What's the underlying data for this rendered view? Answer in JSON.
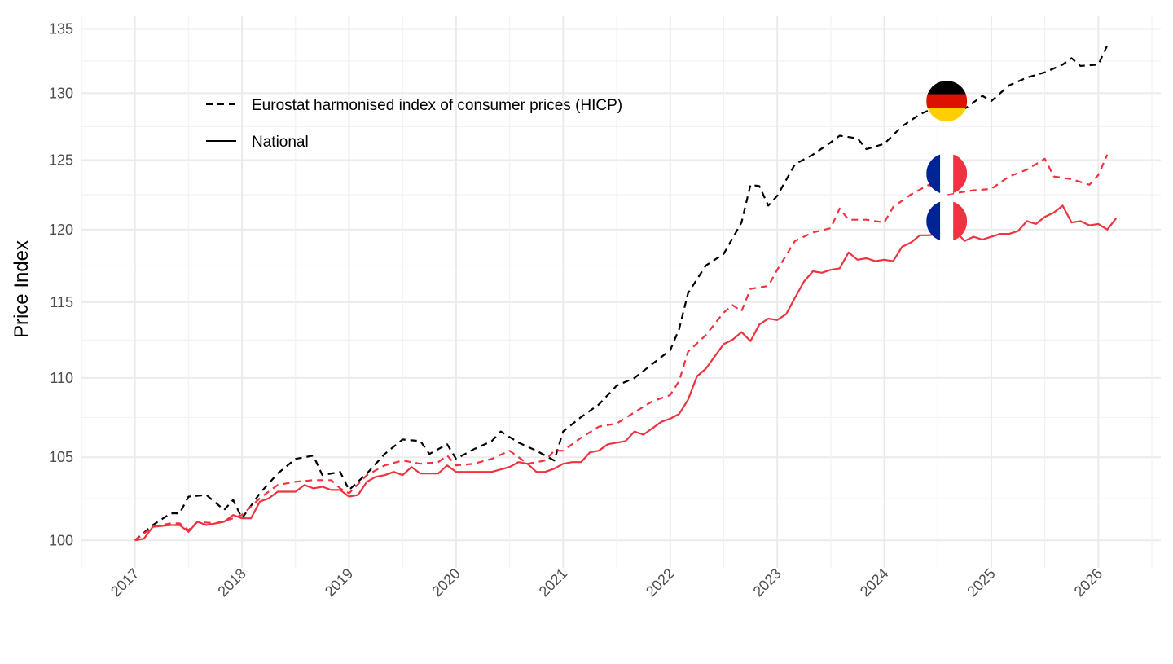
{
  "chart_data": {
    "type": "line",
    "title": "",
    "xlabel": "",
    "ylabel": "Price Index",
    "y_scale": "log",
    "ylim": [
      98.4,
      136
    ],
    "xlim": [
      "2016-07",
      "2026-08"
    ],
    "grid": true,
    "legend_placement": "top-left",
    "y_ticks": [
      100,
      105,
      110,
      115,
      120,
      125,
      130,
      135
    ],
    "x_ticks": [
      "2017",
      "2018",
      "2019",
      "2020",
      "2021",
      "2022",
      "2023",
      "2024",
      "2025",
      "2026"
    ],
    "legend": [
      {
        "label": "Eurostat harmonised index of consumer prices (HICP)",
        "linetype": "dashed"
      },
      {
        "label": "National",
        "linetype": "solid"
      }
    ],
    "colors": {
      "Germany": "#000000",
      "France": "#EF3340"
    },
    "series": [
      {
        "country": "Germany",
        "measure": "HICP",
        "linetype": "dashed",
        "points": [
          [
            "2017-01",
            100
          ],
          [
            "2017-03",
            100.9
          ],
          [
            "2017-05",
            101.6
          ],
          [
            "2017-06",
            101.6
          ],
          [
            "2017-07",
            102.6
          ],
          [
            "2017-09",
            102.7
          ],
          [
            "2017-11",
            101.8
          ],
          [
            "2017-12",
            102.4
          ],
          [
            "2018-01",
            101.3
          ],
          [
            "2018-03",
            102.8
          ],
          [
            "2018-05",
            104.0
          ],
          [
            "2018-07",
            104.9
          ],
          [
            "2018-09",
            105.1
          ],
          [
            "2018-10",
            103.9
          ],
          [
            "2018-12",
            104.1
          ],
          [
            "2019-01",
            103.0
          ],
          [
            "2019-03",
            104.0
          ],
          [
            "2019-05",
            105.2
          ],
          [
            "2019-07",
            106.1
          ],
          [
            "2019-09",
            106.0
          ],
          [
            "2019-10",
            105.2
          ],
          [
            "2019-12",
            105.8
          ],
          [
            "2020-01",
            104.9
          ],
          [
            "2020-03",
            105.5
          ],
          [
            "2020-05",
            106.0
          ],
          [
            "2020-06",
            106.6
          ],
          [
            "2020-08",
            105.9
          ],
          [
            "2020-10",
            105.4
          ],
          [
            "2020-12",
            104.8
          ],
          [
            "2021-01",
            106.6
          ],
          [
            "2021-03",
            107.5
          ],
          [
            "2021-05",
            108.3
          ],
          [
            "2021-07",
            109.5
          ],
          [
            "2021-09",
            110.0
          ],
          [
            "2021-11",
            110.9
          ],
          [
            "2022-01",
            111.8
          ],
          [
            "2022-02",
            113.2
          ],
          [
            "2022-03",
            115.6
          ],
          [
            "2022-05",
            117.5
          ],
          [
            "2022-07",
            118.3
          ],
          [
            "2022-09",
            120.5
          ],
          [
            "2022-10",
            123.2
          ],
          [
            "2022-11",
            123.1
          ],
          [
            "2022-12",
            121.7
          ],
          [
            "2023-01",
            122.4
          ],
          [
            "2023-03",
            124.7
          ],
          [
            "2023-05",
            125.4
          ],
          [
            "2023-07",
            126.3
          ],
          [
            "2023-08",
            126.8
          ],
          [
            "2023-10",
            126.6
          ],
          [
            "2023-11",
            125.8
          ],
          [
            "2024-01",
            126.2
          ],
          [
            "2024-03",
            127.5
          ],
          [
            "2024-05",
            128.4
          ],
          [
            "2024-07",
            129.0
          ],
          [
            "2024-09",
            129.4
          ],
          [
            "2024-10",
            128.8
          ],
          [
            "2024-12",
            129.8
          ],
          [
            "2025-01",
            129.4
          ],
          [
            "2025-03",
            130.6
          ],
          [
            "2025-05",
            131.2
          ],
          [
            "2025-07",
            131.6
          ],
          [
            "2025-09",
            132.2
          ],
          [
            "2025-10",
            132.7
          ],
          [
            "2025-11",
            132.1
          ],
          [
            "2026-01",
            132.2
          ],
          [
            "2026-02",
            133.7
          ]
        ]
      },
      {
        "country": "France",
        "measure": "HICP",
        "linetype": "dashed",
        "points": [
          [
            "2017-01",
            100
          ],
          [
            "2017-03",
            100.8
          ],
          [
            "2017-05",
            101.0
          ],
          [
            "2017-06",
            101.0
          ],
          [
            "2017-07",
            100.6
          ],
          [
            "2017-08",
            101.1
          ],
          [
            "2017-10",
            101.0
          ],
          [
            "2017-12",
            101.3
          ],
          [
            "2018-01",
            101.5
          ],
          [
            "2018-03",
            102.5
          ],
          [
            "2018-05",
            103.3
          ],
          [
            "2018-07",
            103.5
          ],
          [
            "2018-09",
            103.6
          ],
          [
            "2018-11",
            103.6
          ],
          [
            "2018-12",
            103.1
          ],
          [
            "2019-01",
            102.8
          ],
          [
            "2019-03",
            103.9
          ],
          [
            "2019-05",
            104.5
          ],
          [
            "2019-07",
            104.8
          ],
          [
            "2019-09",
            104.6
          ],
          [
            "2019-11",
            104.7
          ],
          [
            "2019-12",
            105.1
          ],
          [
            "2020-01",
            104.5
          ],
          [
            "2020-03",
            104.6
          ],
          [
            "2020-05",
            104.9
          ],
          [
            "2020-07",
            105.4
          ],
          [
            "2020-09",
            104.6
          ],
          [
            "2020-11",
            104.8
          ],
          [
            "2020-12",
            105.4
          ],
          [
            "2021-01",
            105.4
          ],
          [
            "2021-03",
            106.2
          ],
          [
            "2021-05",
            106.9
          ],
          [
            "2021-07",
            107.1
          ],
          [
            "2021-09",
            107.8
          ],
          [
            "2021-11",
            108.5
          ],
          [
            "2022-01",
            108.9
          ],
          [
            "2022-02",
            109.8
          ],
          [
            "2022-03",
            111.7
          ],
          [
            "2022-05",
            112.8
          ],
          [
            "2022-07",
            114.3
          ],
          [
            "2022-08",
            114.8
          ],
          [
            "2022-09",
            114.4
          ],
          [
            "2022-10",
            115.9
          ],
          [
            "2022-12",
            116.1
          ],
          [
            "2023-01",
            117.2
          ],
          [
            "2023-03",
            119.2
          ],
          [
            "2023-05",
            119.8
          ],
          [
            "2023-07",
            120.1
          ],
          [
            "2023-08",
            121.5
          ],
          [
            "2023-09",
            120.7
          ],
          [
            "2023-11",
            120.7
          ],
          [
            "2024-01",
            120.5
          ],
          [
            "2024-02",
            121.6
          ],
          [
            "2024-04",
            122.5
          ],
          [
            "2024-06",
            123.2
          ],
          [
            "2024-08",
            122.5
          ],
          [
            "2024-09",
            122.6
          ],
          [
            "2024-11",
            122.8
          ],
          [
            "2025-01",
            122.9
          ],
          [
            "2025-03",
            123.8
          ],
          [
            "2025-05",
            124.3
          ],
          [
            "2025-07",
            125.1
          ],
          [
            "2025-08",
            123.8
          ],
          [
            "2025-10",
            123.6
          ],
          [
            "2025-12",
            123.2
          ],
          [
            "2026-01",
            123.9
          ],
          [
            "2026-02",
            125.4
          ]
        ]
      },
      {
        "country": "France",
        "measure": "National",
        "linetype": "solid",
        "points": [
          [
            "2017-01",
            100
          ],
          [
            "2017-02",
            100.1
          ],
          [
            "2017-03",
            100.8
          ],
          [
            "2017-05",
            100.9
          ],
          [
            "2017-06",
            100.9
          ],
          [
            "2017-07",
            100.5
          ],
          [
            "2017-08",
            101.1
          ],
          [
            "2017-09",
            100.9
          ],
          [
            "2017-11",
            101.1
          ],
          [
            "2017-12",
            101.5
          ],
          [
            "2018-01",
            101.3
          ],
          [
            "2018-02",
            101.3
          ],
          [
            "2018-03",
            102.3
          ],
          [
            "2018-04",
            102.5
          ],
          [
            "2018-05",
            102.9
          ],
          [
            "2018-07",
            102.9
          ],
          [
            "2018-08",
            103.3
          ],
          [
            "2018-09",
            103.1
          ],
          [
            "2018-10",
            103.2
          ],
          [
            "2018-11",
            103.0
          ],
          [
            "2018-12",
            103.0
          ],
          [
            "2019-01",
            102.6
          ],
          [
            "2019-02",
            102.7
          ],
          [
            "2019-03",
            103.5
          ],
          [
            "2019-04",
            103.8
          ],
          [
            "2019-05",
            103.9
          ],
          [
            "2019-06",
            104.1
          ],
          [
            "2019-07",
            103.9
          ],
          [
            "2019-08",
            104.4
          ],
          [
            "2019-09",
            104.0
          ],
          [
            "2019-10",
            104.0
          ],
          [
            "2019-11",
            104.0
          ],
          [
            "2019-12",
            104.5
          ],
          [
            "2020-01",
            104.1
          ],
          [
            "2020-03",
            104.1
          ],
          [
            "2020-05",
            104.1
          ],
          [
            "2020-07",
            104.4
          ],
          [
            "2020-08",
            104.7
          ],
          [
            "2020-09",
            104.6
          ],
          [
            "2020-10",
            104.1
          ],
          [
            "2020-11",
            104.1
          ],
          [
            "2020-12",
            104.3
          ],
          [
            "2021-01",
            104.6
          ],
          [
            "2021-02",
            104.7
          ],
          [
            "2021-03",
            104.7
          ],
          [
            "2021-04",
            105.3
          ],
          [
            "2021-05",
            105.4
          ],
          [
            "2021-06",
            105.8
          ],
          [
            "2021-07",
            105.9
          ],
          [
            "2021-08",
            106.0
          ],
          [
            "2021-09",
            106.6
          ],
          [
            "2021-10",
            106.4
          ],
          [
            "2021-12",
            107.2
          ],
          [
            "2022-01",
            107.4
          ],
          [
            "2022-02",
            107.7
          ],
          [
            "2022-03",
            108.6
          ],
          [
            "2022-04",
            110.1
          ],
          [
            "2022-05",
            110.6
          ],
          [
            "2022-06",
            111.4
          ],
          [
            "2022-07",
            112.2
          ],
          [
            "2022-08",
            112.5
          ],
          [
            "2022-09",
            113.0
          ],
          [
            "2022-10",
            112.4
          ],
          [
            "2022-11",
            113.5
          ],
          [
            "2022-12",
            113.9
          ],
          [
            "2023-01",
            113.8
          ],
          [
            "2023-02",
            114.2
          ],
          [
            "2023-03",
            115.3
          ],
          [
            "2023-04",
            116.4
          ],
          [
            "2023-05",
            117.1
          ],
          [
            "2023-06",
            117.0
          ],
          [
            "2023-07",
            117.2
          ],
          [
            "2023-08",
            117.3
          ],
          [
            "2023-09",
            118.4
          ],
          [
            "2023-10",
            117.9
          ],
          [
            "2023-11",
            118.0
          ],
          [
            "2023-12",
            117.8
          ],
          [
            "2024-01",
            117.9
          ],
          [
            "2024-02",
            117.8
          ],
          [
            "2024-03",
            118.8
          ],
          [
            "2024-04",
            119.1
          ],
          [
            "2024-05",
            119.6
          ],
          [
            "2024-06",
            119.6
          ],
          [
            "2024-07",
            119.7
          ],
          [
            "2024-09",
            119.9
          ],
          [
            "2024-10",
            119.2
          ],
          [
            "2024-11",
            119.5
          ],
          [
            "2024-12",
            119.3
          ],
          [
            "2025-01",
            119.5
          ],
          [
            "2025-02",
            119.7
          ],
          [
            "2025-03",
            119.7
          ],
          [
            "2025-04",
            119.9
          ],
          [
            "2025-05",
            120.6
          ],
          [
            "2025-06",
            120.4
          ],
          [
            "2025-07",
            120.9
          ],
          [
            "2025-08",
            121.2
          ],
          [
            "2025-09",
            121.7
          ],
          [
            "2025-10",
            120.5
          ],
          [
            "2025-11",
            120.6
          ],
          [
            "2025-12",
            120.3
          ],
          [
            "2026-01",
            120.4
          ],
          [
            "2026-02",
            120.0
          ],
          [
            "2026-03",
            120.8
          ]
        ]
      }
    ],
    "flags": [
      {
        "country": "Germany",
        "at": "2024-08",
        "value": 129.4
      },
      {
        "country": "France",
        "at": "2024-08",
        "value": 124.0
      },
      {
        "country": "France",
        "at": "2024-08",
        "value": 120.6
      }
    ]
  }
}
